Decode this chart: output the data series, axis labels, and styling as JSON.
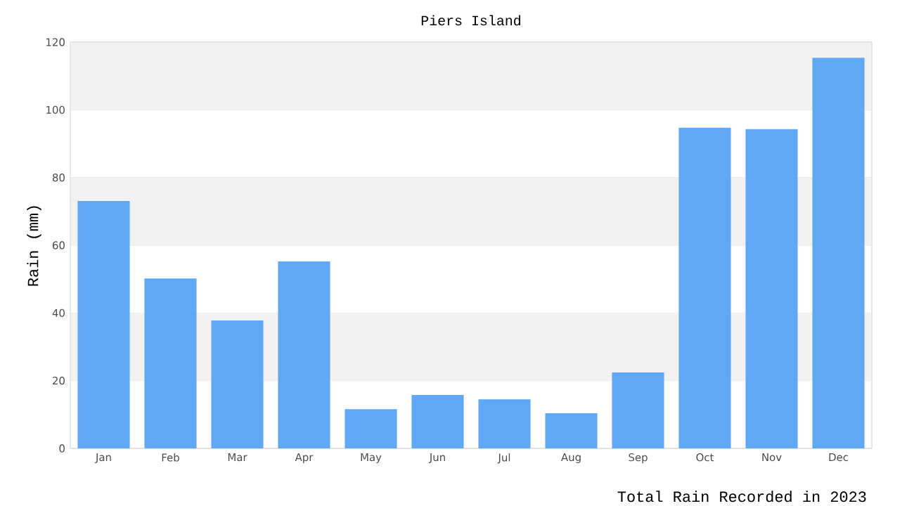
{
  "chart_data": {
    "type": "bar",
    "title": "Piers Island",
    "ylabel": "Rain (mm)",
    "categories": [
      "Jan",
      "Feb",
      "Mar",
      "Apr",
      "May",
      "Jun",
      "Jul",
      "Aug",
      "Sep",
      "Oct",
      "Nov",
      "Dec"
    ],
    "values": [
      73.1,
      50.2,
      37.8,
      55.2,
      11.6,
      15.8,
      14.5,
      10.4,
      22.4,
      94.7,
      94.3,
      115.4
    ],
    "color": "#60a8f4",
    "ylim": [
      0,
      120
    ],
    "yticks": [
      0,
      20,
      40,
      60,
      80,
      100,
      120
    ],
    "grid": "y",
    "annotations": [
      "Total Rain Recorded in 2023"
    ]
  }
}
